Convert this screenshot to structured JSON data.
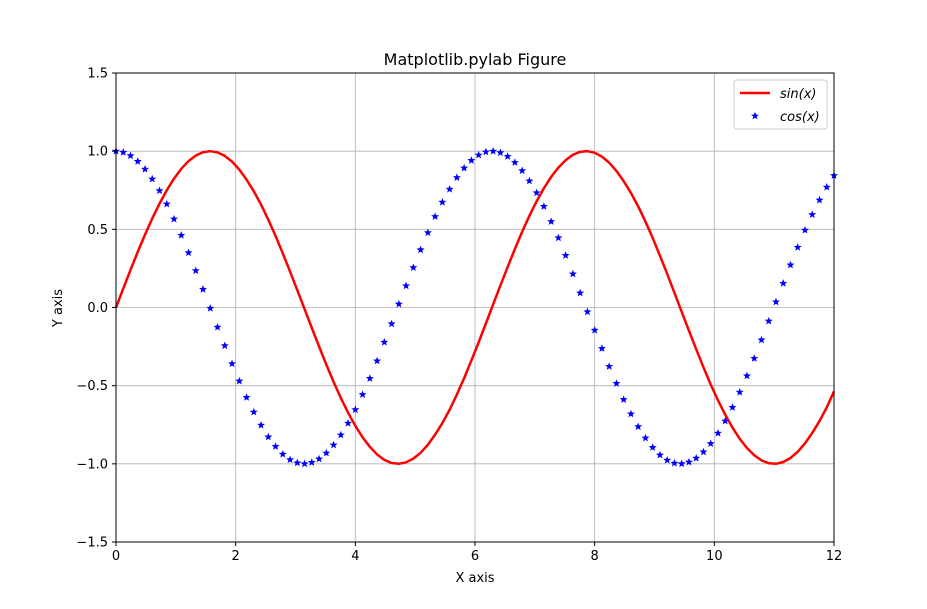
{
  "chart_data": {
    "type": "line",
    "title": "Matplotlib.pylab Figure",
    "xlabel": "X axis",
    "ylabel": "Y axis",
    "xlim": [
      0,
      12
    ],
    "ylim": [
      -1.5,
      1.5
    ],
    "xticks": [
      0,
      2,
      4,
      6,
      8,
      10,
      12
    ],
    "xtick_labels": [
      "0",
      "2",
      "4",
      "6",
      "8",
      "10",
      "12"
    ],
    "yticks": [
      -1.5,
      -1.0,
      -0.5,
      0.0,
      0.5,
      1.0,
      1.5
    ],
    "ytick_labels": [
      "−1.5",
      "−1.0",
      "−0.5",
      "0.0",
      "0.5",
      "1.0",
      "1.5"
    ],
    "grid": true,
    "legend_position": "upper-right",
    "x": [
      0.0,
      0.1212,
      0.2424,
      0.3636,
      0.4848,
      0.6061,
      0.7273,
      0.8485,
      0.9697,
      1.0909,
      1.2121,
      1.3333,
      1.4545,
      1.5758,
      1.697,
      1.8182,
      1.9394,
      2.0606,
      2.1818,
      2.303,
      2.4242,
      2.5455,
      2.6667,
      2.7879,
      2.9091,
      3.0303,
      3.1515,
      3.2727,
      3.3939,
      3.5152,
      3.6364,
      3.7576,
      3.8788,
      4.0,
      4.1212,
      4.2424,
      4.3636,
      4.4848,
      4.6061,
      4.7273,
      4.8485,
      4.9697,
      5.0909,
      5.2121,
      5.3333,
      5.4545,
      5.5758,
      5.697,
      5.8182,
      5.9394,
      6.0606,
      6.1818,
      6.303,
      6.4242,
      6.5455,
      6.6667,
      6.7879,
      6.9091,
      7.0303,
      7.1515,
      7.2727,
      7.3939,
      7.5152,
      7.6364,
      7.7576,
      7.8788,
      8.0,
      8.1212,
      8.2424,
      8.3636,
      8.4848,
      8.6061,
      8.7273,
      8.8485,
      8.9697,
      9.0909,
      9.2121,
      9.3333,
      9.4545,
      9.5758,
      9.697,
      9.8182,
      9.9394,
      10.0606,
      10.1818,
      10.303,
      10.4242,
      10.5455,
      10.6667,
      10.7879,
      10.9091,
      11.0303,
      11.1515,
      11.2727,
      11.3939,
      11.5152,
      11.6364,
      11.7576,
      11.8788,
      12.0
    ],
    "series": [
      {
        "name": "sin(x)",
        "style": "line",
        "color": "#ff0000",
        "values": [
          0.0,
          0.1209,
          0.24,
          0.3557,
          0.4661,
          0.5696,
          0.6646,
          0.75,
          0.8247,
          0.8871,
          0.9366,
          0.9719,
          0.9931,
          0.9999,
          0.992,
          0.9696,
          0.9331,
          0.8822,
          0.8181,
          0.7437,
          0.6585,
          0.5612,
          0.4582,
          0.3457,
          0.2301,
          0.111,
          -0.0099,
          -0.1307,
          -0.2495,
          -0.3653,
          -0.4757,
          -0.5785,
          -0.6728,
          -0.7568,
          -0.8306,
          -0.8911,
          -0.9399,
          -0.975,
          -0.9945,
          -0.9998,
          -0.9903,
          -0.9669,
          -0.9294,
          -0.8781,
          -0.8133,
          -0.7392,
          -0.654,
          -0.5567,
          -0.4524,
          -0.339,
          -0.223,
          -0.1024,
          0.0198,
          0.1405,
          0.2589,
          0.3741,
          0.4845,
          0.5865,
          0.6797,
          0.7627,
          0.8354,
          0.8951,
          0.9428,
          0.9767,
          0.9957,
          1.0,
          0.9894,
          0.965,
          0.9262,
          0.8738,
          0.8083,
          0.7329,
          0.647,
          0.5497,
          0.4451,
          0.3313,
          0.2154,
          0.0943,
          -0.0279,
          -0.1484,
          -0.2669,
          -0.3826,
          -0.4925,
          -0.5933,
          -0.6858,
          -0.768,
          -0.8398,
          -0.8985,
          -0.9453,
          -0.9781,
          -0.9962,
          -0.9998,
          -0.9883,
          -0.9625,
          -0.9228,
          -0.869,
          -0.8025,
          -0.7263,
          -0.6389,
          -0.5366
        ]
      },
      {
        "name": "cos(x)",
        "style": "marker",
        "marker": "star",
        "color": "#0000ff",
        "values": [
          1.0,
          0.9927,
          0.9708,
          0.9346,
          0.8847,
          0.8218,
          0.747,
          0.6615,
          0.5658,
          0.4614,
          0.3504,
          0.2353,
          0.1163,
          -0.005,
          -0.1261,
          -0.2445,
          -0.3595,
          -0.4706,
          -0.5751,
          -0.6686,
          -0.7529,
          -0.8277,
          -0.8888,
          -0.9383,
          -0.9732,
          -0.9938,
          -0.9999,
          -0.9914,
          -0.9684,
          -0.9309,
          -0.8796,
          -0.8156,
          -0.74,
          -0.6536,
          -0.5568,
          -0.4537,
          -0.3416,
          -0.2222,
          -0.1042,
          0.0221,
          0.1387,
          0.2552,
          0.3693,
          0.4788,
          0.5818,
          0.6734,
          0.7566,
          0.8307,
          0.8918,
          0.9408,
          0.9748,
          0.9947,
          0.9998,
          0.9901,
          0.9659,
          0.9275,
          0.8748,
          0.8097,
          0.7333,
          0.6466,
          0.5496,
          0.4459,
          0.3333,
          0.2144,
          0.0927,
          -0.0279,
          -0.1455,
          -0.2622,
          -0.3772,
          -0.486,
          -0.5887,
          -0.6806,
          -0.7624,
          -0.8354,
          -0.8956,
          -0.9436,
          -0.9765,
          -0.9956,
          -0.9996,
          -0.9889,
          -0.9637,
          -0.9239,
          -0.8702,
          -0.8037,
          -0.7262,
          -0.6391,
          -0.5416,
          -0.4372,
          -0.3257,
          -0.2074,
          -0.087,
          0.0356,
          0.1548,
          0.272,
          0.3847,
          0.4947,
          0.5946,
          0.6871,
          0.7694,
          0.8439
        ]
      }
    ]
  }
}
